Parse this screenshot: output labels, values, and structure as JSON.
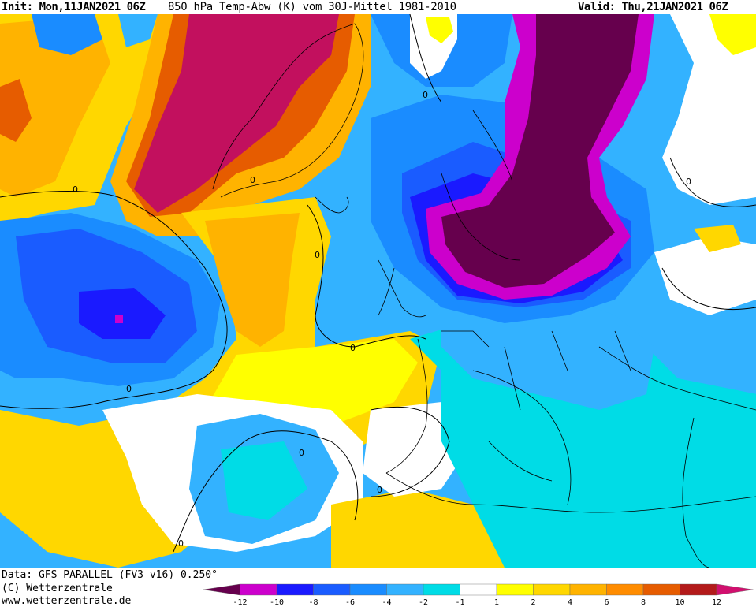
{
  "header": {
    "init": "Init: Mon,11JAN2021 06Z",
    "title": "850 hPa Temp-Abw (K) vom 30J-Mittel 1981-2010",
    "valid": "Valid: Thu,21JAN2021 06Z"
  },
  "footer": {
    "data_source": "Data: GFS PARALLEL (FV3 v16) 0.250°",
    "copyright": "(C) Wetterzentrale",
    "website": "www.wetterzentrale.de"
  },
  "map": {
    "contour_label": "0"
  },
  "legend": {
    "colors": [
      "#66004d",
      "#cc00cc",
      "#1a1aff",
      "#1a5cff",
      "#1a8cff",
      "#33b2ff",
      "#00dce6",
      "#ffffff",
      "#ffff00",
      "#ffd700",
      "#ffb300",
      "#ff8c00",
      "#e65c00",
      "#b31a1a",
      "#d10f6e"
    ],
    "ticks": [
      "-12",
      "-10",
      "-8",
      "-6",
      "-4",
      "-2",
      "-1",
      "1",
      "2",
      "4",
      "6",
      "8",
      "10",
      "12"
    ]
  },
  "colors": {
    "deep_purple": "#66004d",
    "magenta": "#cc00cc",
    "blue": "#1a1aff",
    "mid_blue": "#1a5cff",
    "light_blue": "#33b2ff",
    "cyan": "#00dce6",
    "yellow": "#ffff00",
    "gold": "#ffd700",
    "orange": "#ffb300",
    "dark_orange": "#e65c00",
    "crimson": "#c2105e"
  }
}
